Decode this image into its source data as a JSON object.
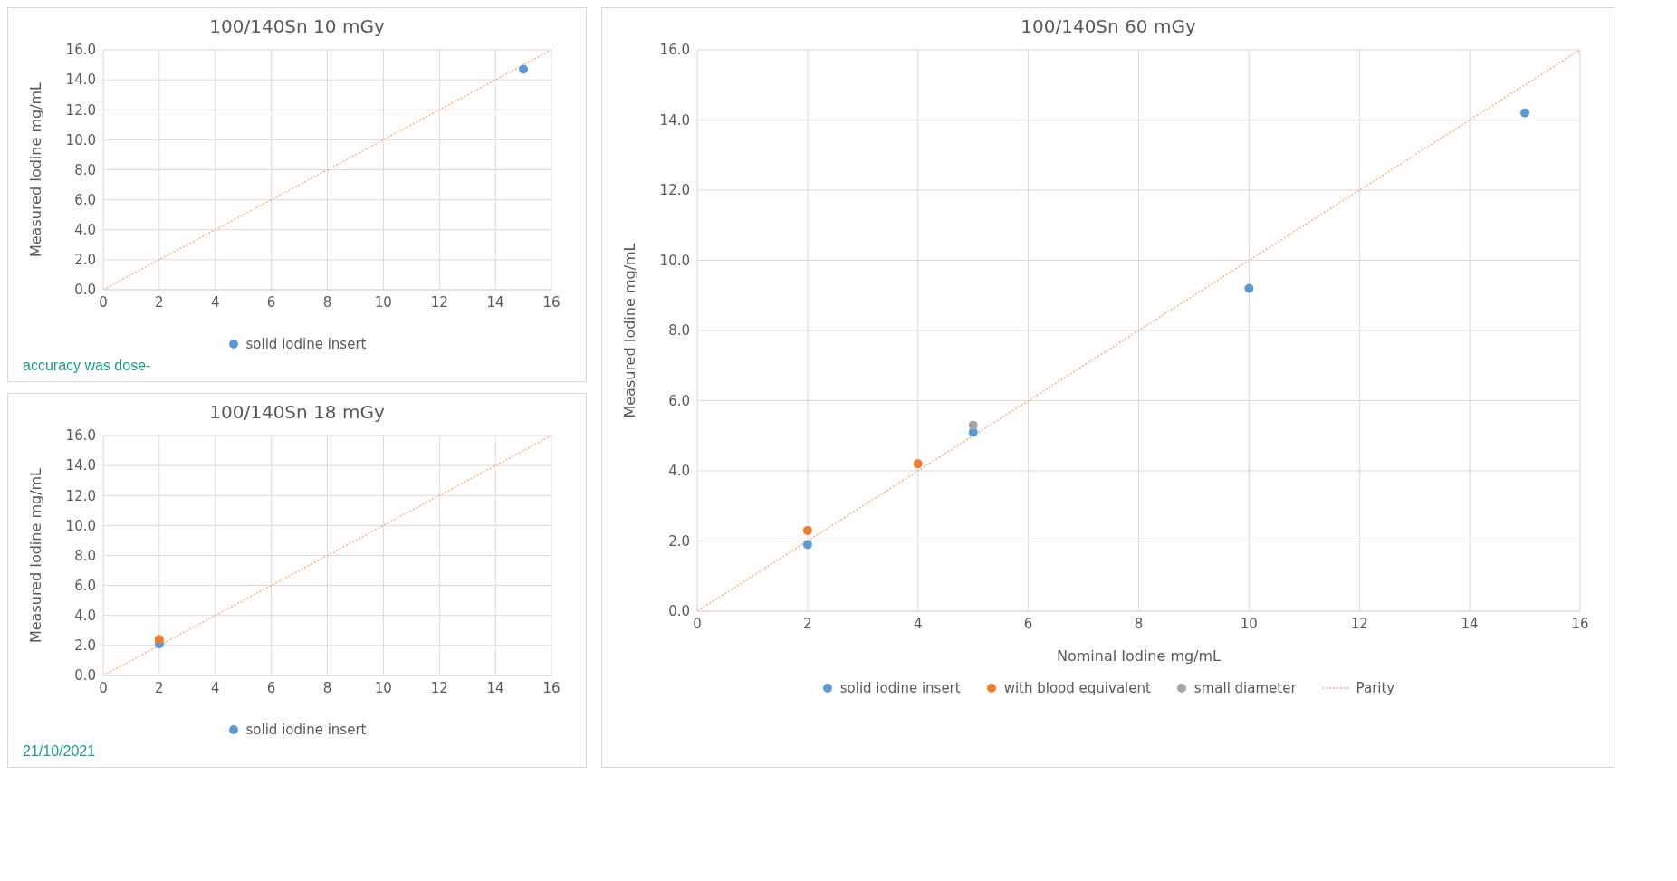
{
  "chart_data": [
    {
      "type": "scatter",
      "title": "100/140Sn 10 mGy",
      "ylabel": "Measured Iodine mg/mL",
      "xlim": [
        0,
        16
      ],
      "xticks": [
        0,
        2,
        4,
        6,
        8,
        10,
        12,
        14,
        16
      ],
      "ylim": [
        0,
        16
      ],
      "yticks": [
        {
          "value": 0,
          "label": "0.0"
        },
        {
          "value": 2,
          "label": "2.0"
        },
        {
          "value": 4,
          "label": "4.0"
        },
        {
          "value": 6,
          "label": "6.0"
        },
        {
          "value": 8,
          "label": "8.0"
        },
        {
          "value": 10,
          "label": "10.0"
        },
        {
          "value": 12,
          "label": "12.0"
        },
        {
          "value": 14,
          "label": "14.0"
        },
        {
          "value": 16,
          "label": "16.0"
        }
      ],
      "grid": true,
      "legend": "bottom",
      "marker": "circle",
      "annotations": [
        "accuracy was dose-"
      ],
      "series": [
        {
          "name": "solid iodine insert",
          "color": "#5b9bd5",
          "x": [
            15
          ],
          "values": [
            14.7
          ]
        },
        {
          "type": "line",
          "marker": "none",
          "color": "#f4b183",
          "line_style": "dotted",
          "x": [
            0,
            16
          ],
          "values": [
            0,
            16
          ]
        }
      ]
    },
    {
      "type": "scatter",
      "title": "100/140Sn 18 mGy",
      "ylabel": "Measured Iodine mg/mL",
      "xlim": [
        0,
        16
      ],
      "xticks": [
        0,
        2,
        4,
        6,
        8,
        10,
        12,
        14,
        16
      ],
      "ylim": [
        0,
        16
      ],
      "yticks": [
        {
          "value": 0,
          "label": "0.0"
        },
        {
          "value": 2,
          "label": "2.0"
        },
        {
          "value": 4,
          "label": "4.0"
        },
        {
          "value": 6,
          "label": "6.0"
        },
        {
          "value": 8,
          "label": "8.0"
        },
        {
          "value": 10,
          "label": "10.0"
        },
        {
          "value": 12,
          "label": "12.0"
        },
        {
          "value": 14,
          "label": "14.0"
        },
        {
          "value": 16,
          "label": "16.0"
        }
      ],
      "grid": true,
      "legend": "bottom",
      "marker": "circle",
      "annotations": [
        "21/10/2021"
      ],
      "series": [
        {
          "name": "solid iodine insert",
          "color": "#5b9bd5",
          "x": [
            2
          ],
          "values": [
            2.1
          ]
        },
        {
          "color": "#ed7d31",
          "x": [
            2
          ],
          "values": [
            2.4
          ]
        },
        {
          "type": "line",
          "marker": "none",
          "color": "#f4b183",
          "line_style": "dotted",
          "x": [
            0,
            16
          ],
          "values": [
            0,
            16
          ]
        }
      ]
    },
    {
      "type": "scatter",
      "title": "100/140Sn 60 mGy",
      "xlabel": "Nominal Iodine mg/mL",
      "ylabel": "Measured Iodine mg/mL",
      "xlim": [
        0,
        16
      ],
      "xticks": [
        0,
        2,
        4,
        6,
        8,
        10,
        12,
        14,
        16
      ],
      "ylim": [
        0,
        16
      ],
      "yticks": [
        {
          "value": 0,
          "label": "0.0"
        },
        {
          "value": 2,
          "label": "2.0"
        },
        {
          "value": 4,
          "label": "4.0"
        },
        {
          "value": 6,
          "label": "6.0"
        },
        {
          "value": 8,
          "label": "8.0"
        },
        {
          "value": 10,
          "label": "10.0"
        },
        {
          "value": 12,
          "label": "12.0"
        },
        {
          "value": 14,
          "label": "14.0"
        },
        {
          "value": 16,
          "label": "16.0"
        }
      ],
      "grid": true,
      "legend": "bottom",
      "marker": "circle",
      "series": [
        {
          "name": "solid iodine insert",
          "color": "#5b9bd5",
          "x": [
            2,
            5,
            10,
            15
          ],
          "values": [
            1.9,
            5.1,
            9.2,
            14.2
          ]
        },
        {
          "name": "with blood equivalent",
          "color": "#ed7d31",
          "x": [
            2,
            4
          ],
          "values": [
            2.3,
            4.2
          ]
        },
        {
          "name": "small diameter",
          "color": "#a5a5a5",
          "x": [
            5
          ],
          "values": [
            5.3
          ]
        },
        {
          "name": "Parity",
          "type": "line",
          "marker": "none",
          "color": "#f4b183",
          "line_style": "dotted",
          "x": [
            0,
            16
          ],
          "values": [
            0,
            16
          ]
        }
      ]
    }
  ]
}
